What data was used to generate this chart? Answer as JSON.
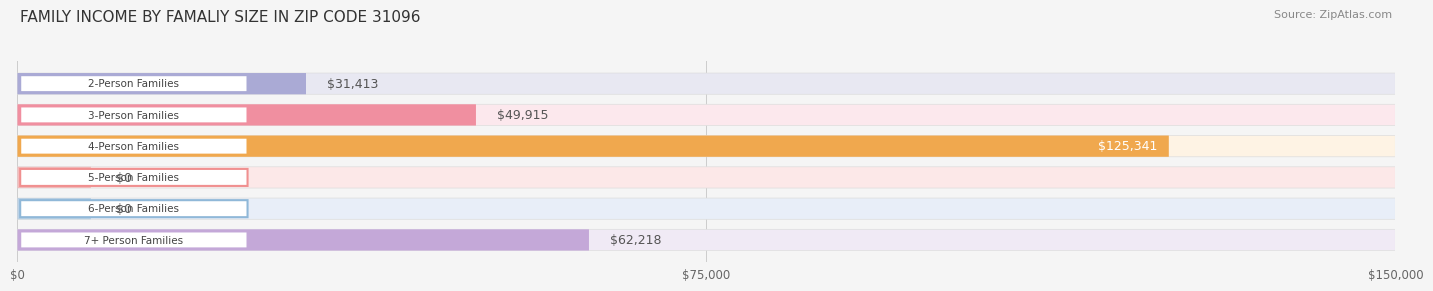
{
  "title": "FAMILY INCOME BY FAMALIY SIZE IN ZIP CODE 31096",
  "source": "Source: ZipAtlas.com",
  "categories": [
    "2-Person Families",
    "3-Person Families",
    "4-Person Families",
    "5-Person Families",
    "6-Person Families",
    "7+ Person Families"
  ],
  "values": [
    31413,
    49915,
    125341,
    0,
    0,
    62218
  ],
  "bar_colors": [
    "#aaaad5",
    "#f08fa0",
    "#f0a84e",
    "#f09090",
    "#90b8d8",
    "#c4a8d8"
  ],
  "bar_bg_colors": [
    "#e8e8f2",
    "#fce8ed",
    "#fef3e4",
    "#fce8e8",
    "#e8eef8",
    "#f0eaf5"
  ],
  "label_border_colors": [
    "#aaaad5",
    "#f08fa0",
    "#f0a84e",
    "#f09090",
    "#90b8d8",
    "#c4a8d8"
  ],
  "xlim": [
    0,
    150000
  ],
  "xticks": [
    0,
    75000,
    150000
  ],
  "xticklabels": [
    "$0",
    "$75,000",
    "$150,000"
  ],
  "background_color": "#f5f5f5",
  "title_fontsize": 11,
  "bar_height": 0.68,
  "value_label_fontsize": 9,
  "zero_stub_values": [
    8000,
    8000
  ],
  "zero_stub_indices": [
    3,
    4
  ]
}
